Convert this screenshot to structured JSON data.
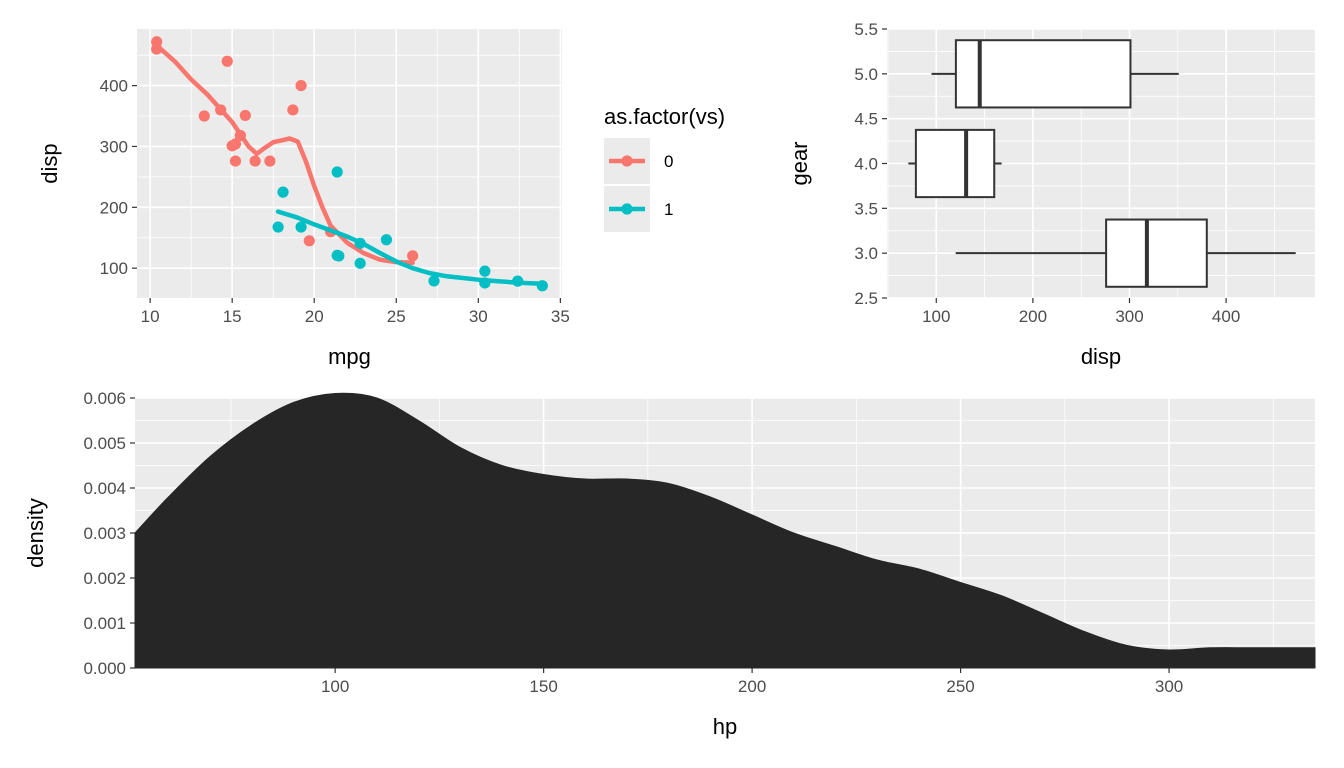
{
  "chart_data": [
    {
      "id": "scatter",
      "type": "scatter",
      "xlabel": "mpg",
      "ylabel": "disp",
      "xlim": [
        9.2,
        35.1
      ],
      "ylim": [
        51,
        493
      ],
      "xticks": [
        10,
        15,
        20,
        25,
        30,
        35
      ],
      "yticks": [
        100,
        200,
        300,
        400
      ],
      "grid": true,
      "legend": {
        "title": "as.factor(vs)",
        "position": "right",
        "entries": [
          {
            "label": "0",
            "color": "#F8766D"
          },
          {
            "label": "1",
            "color": "#00BFC4"
          }
        ]
      },
      "series": [
        {
          "name": "0",
          "color": "#F8766D",
          "points": [
            [
              10.4,
              472
            ],
            [
              10.4,
              460
            ],
            [
              13.3,
              350
            ],
            [
              14.3,
              360
            ],
            [
              14.7,
              440
            ],
            [
              15.0,
              301
            ],
            [
              15.2,
              304
            ],
            [
              15.2,
              276
            ],
            [
              15.5,
              318
            ],
            [
              15.8,
              351
            ],
            [
              16.4,
              276
            ],
            [
              17.3,
              276
            ],
            [
              18.7,
              360
            ],
            [
              19.2,
              400
            ],
            [
              19.7,
              145
            ],
            [
              21.0,
              160
            ],
            [
              21.0,
              160
            ],
            [
              26.0,
              120.3
            ]
          ],
          "smooth": [
            [
              10.4,
              466
            ],
            [
              11.5,
              440
            ],
            [
              12.5,
              410
            ],
            [
              13.5,
              385
            ],
            [
              14.5,
              355
            ],
            [
              15.0,
              340
            ],
            [
              15.5,
              320
            ],
            [
              16.0,
              300
            ],
            [
              16.5,
              288
            ],
            [
              17.0,
              298
            ],
            [
              17.5,
              307
            ],
            [
              18.0,
              310
            ],
            [
              18.5,
              313
            ],
            [
              19.0,
              308
            ],
            [
              19.5,
              275
            ],
            [
              20.0,
              235
            ],
            [
              20.5,
              200
            ],
            [
              21.0,
              170
            ],
            [
              22.0,
              142
            ],
            [
              23.0,
              125
            ],
            [
              24.0,
              114
            ],
            [
              25.0,
              110
            ],
            [
              26.0,
              109
            ]
          ]
        },
        {
          "name": "1",
          "color": "#00BFC4",
          "points": [
            [
              17.8,
              167.6
            ],
            [
              18.1,
              225
            ],
            [
              19.2,
              167.6
            ],
            [
              21.4,
              258
            ],
            [
              21.4,
              121
            ],
            [
              21.5,
              120.1
            ],
            [
              22.8,
              108
            ],
            [
              22.8,
              140.8
            ],
            [
              24.4,
              146.7
            ],
            [
              27.3,
              79
            ],
            [
              30.4,
              75.7
            ],
            [
              30.4,
              95.1
            ],
            [
              32.4,
              78.7
            ],
            [
              33.9,
              71.1
            ]
          ],
          "smooth": [
            [
              17.8,
              193
            ],
            [
              19.0,
              183
            ],
            [
              20.0,
              172
            ],
            [
              21.0,
              162
            ],
            [
              22.0,
              152
            ],
            [
              23.0,
              140
            ],
            [
              24.0,
              125
            ],
            [
              25.0,
              111
            ],
            [
              26.0,
              100
            ],
            [
              27.0,
              92
            ],
            [
              28.0,
              87
            ],
            [
              29.0,
              84
            ],
            [
              30.0,
              81
            ],
            [
              31.0,
              79
            ],
            [
              32.0,
              77
            ],
            [
              33.0,
              75.5
            ],
            [
              33.9,
              74.5
            ]
          ]
        }
      ]
    },
    {
      "id": "boxplot",
      "type": "box",
      "orientation": "horizontal",
      "xlabel": "disp",
      "ylabel": "gear",
      "xlim": [
        49,
        492
      ],
      "ylim": [
        2.5,
        5.5
      ],
      "xticks": [
        100,
        200,
        300,
        400
      ],
      "yticks": [
        2.5,
        3.0,
        3.5,
        4.0,
        4.5,
        5.0,
        5.5
      ],
      "ytick_labels": [
        "2.5",
        "3.0",
        "3.5",
        "4.0",
        "4.5",
        "5.0",
        "5.5"
      ],
      "grid": true,
      "boxes": [
        {
          "gear": 3,
          "whisker_low": 120.1,
          "q1": 275.8,
          "median": 318,
          "q3": 380,
          "whisker_high": 472
        },
        {
          "gear": 4,
          "whisker_low": 71.1,
          "q1": 78.9,
          "median": 130.9,
          "q3": 160,
          "whisker_high": 167.6
        },
        {
          "gear": 5,
          "whisker_low": 95.1,
          "q1": 120.3,
          "median": 145,
          "q3": 301,
          "whisker_high": 351
        }
      ]
    },
    {
      "id": "density",
      "type": "area",
      "xlabel": "hp",
      "ylabel": "density",
      "xlim": [
        52,
        335
      ],
      "ylim": [
        0,
        0.006
      ],
      "xticks": [
        100,
        150,
        200,
        250,
        300
      ],
      "yticks": [
        0,
        0.001,
        0.002,
        0.003,
        0.004,
        0.005,
        0.006
      ],
      "ytick_labels": [
        "0.000",
        "0.001",
        "0.002",
        "0.003",
        "0.004",
        "0.005",
        "0.006"
      ],
      "grid": true,
      "fill": "#262626",
      "x": [
        52,
        60,
        70,
        80,
        90,
        100,
        110,
        120,
        130,
        140,
        150,
        160,
        170,
        180,
        190,
        200,
        210,
        220,
        230,
        240,
        250,
        260,
        270,
        280,
        290,
        300,
        310,
        320,
        335
      ],
      "y": [
        0.003,
        0.0038,
        0.0047,
        0.0054,
        0.0059,
        0.0061,
        0.006,
        0.0055,
        0.0049,
        0.0045,
        0.0043,
        0.0042,
        0.0042,
        0.0041,
        0.0038,
        0.0034,
        0.003,
        0.0027,
        0.0024,
        0.0022,
        0.0019,
        0.0016,
        0.0012,
        0.0008,
        0.0005,
        0.0004,
        0.00045,
        0.00045,
        0.00045
      ]
    }
  ]
}
